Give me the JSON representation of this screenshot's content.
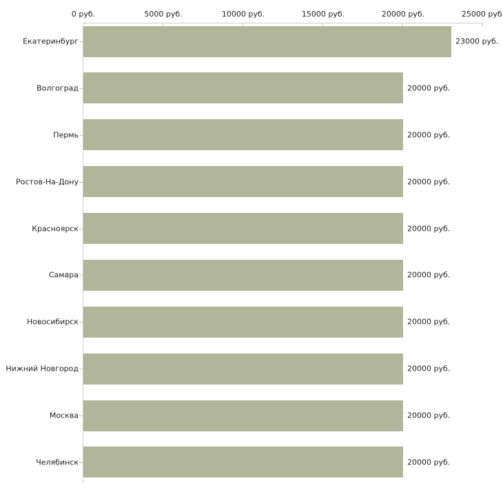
{
  "chart_data": {
    "type": "bar",
    "orientation": "horizontal",
    "title": "",
    "xlabel": "",
    "ylabel": "",
    "grid": false,
    "legend": null,
    "xlim": [
      0,
      25000
    ],
    "x_ticks": [
      0,
      5000,
      10000,
      15000,
      20000,
      25000
    ],
    "x_tick_labels": [
      "0 руб.",
      "5000 руб.",
      "10000 руб.",
      "15000 руб.",
      "20000 руб.",
      "25000 руб."
    ],
    "categories": [
      "Екатеринбург",
      "Волгоград",
      "Пермь",
      "Ростов-На-Дону",
      "Красноярск",
      "Самара",
      "Новосибирск",
      "Нижний Новгород",
      "Москва",
      "Челябинск"
    ],
    "values": [
      23000,
      20000,
      20000,
      20000,
      20000,
      20000,
      20000,
      20000,
      20000,
      20000
    ],
    "value_labels": [
      "23000 руб.",
      "20000 руб.",
      "20000 руб.",
      "20000 руб.",
      "20000 руб.",
      "20000 руб.",
      "20000 руб.",
      "20000 руб.",
      "20000 руб.",
      "20000 руб."
    ],
    "unit": "руб.",
    "colors": {
      "bar": "#b1b69a",
      "axis": "#cccccc",
      "tick": "#c6cbb2",
      "text": "#222222",
      "background": "#ffffff"
    }
  }
}
